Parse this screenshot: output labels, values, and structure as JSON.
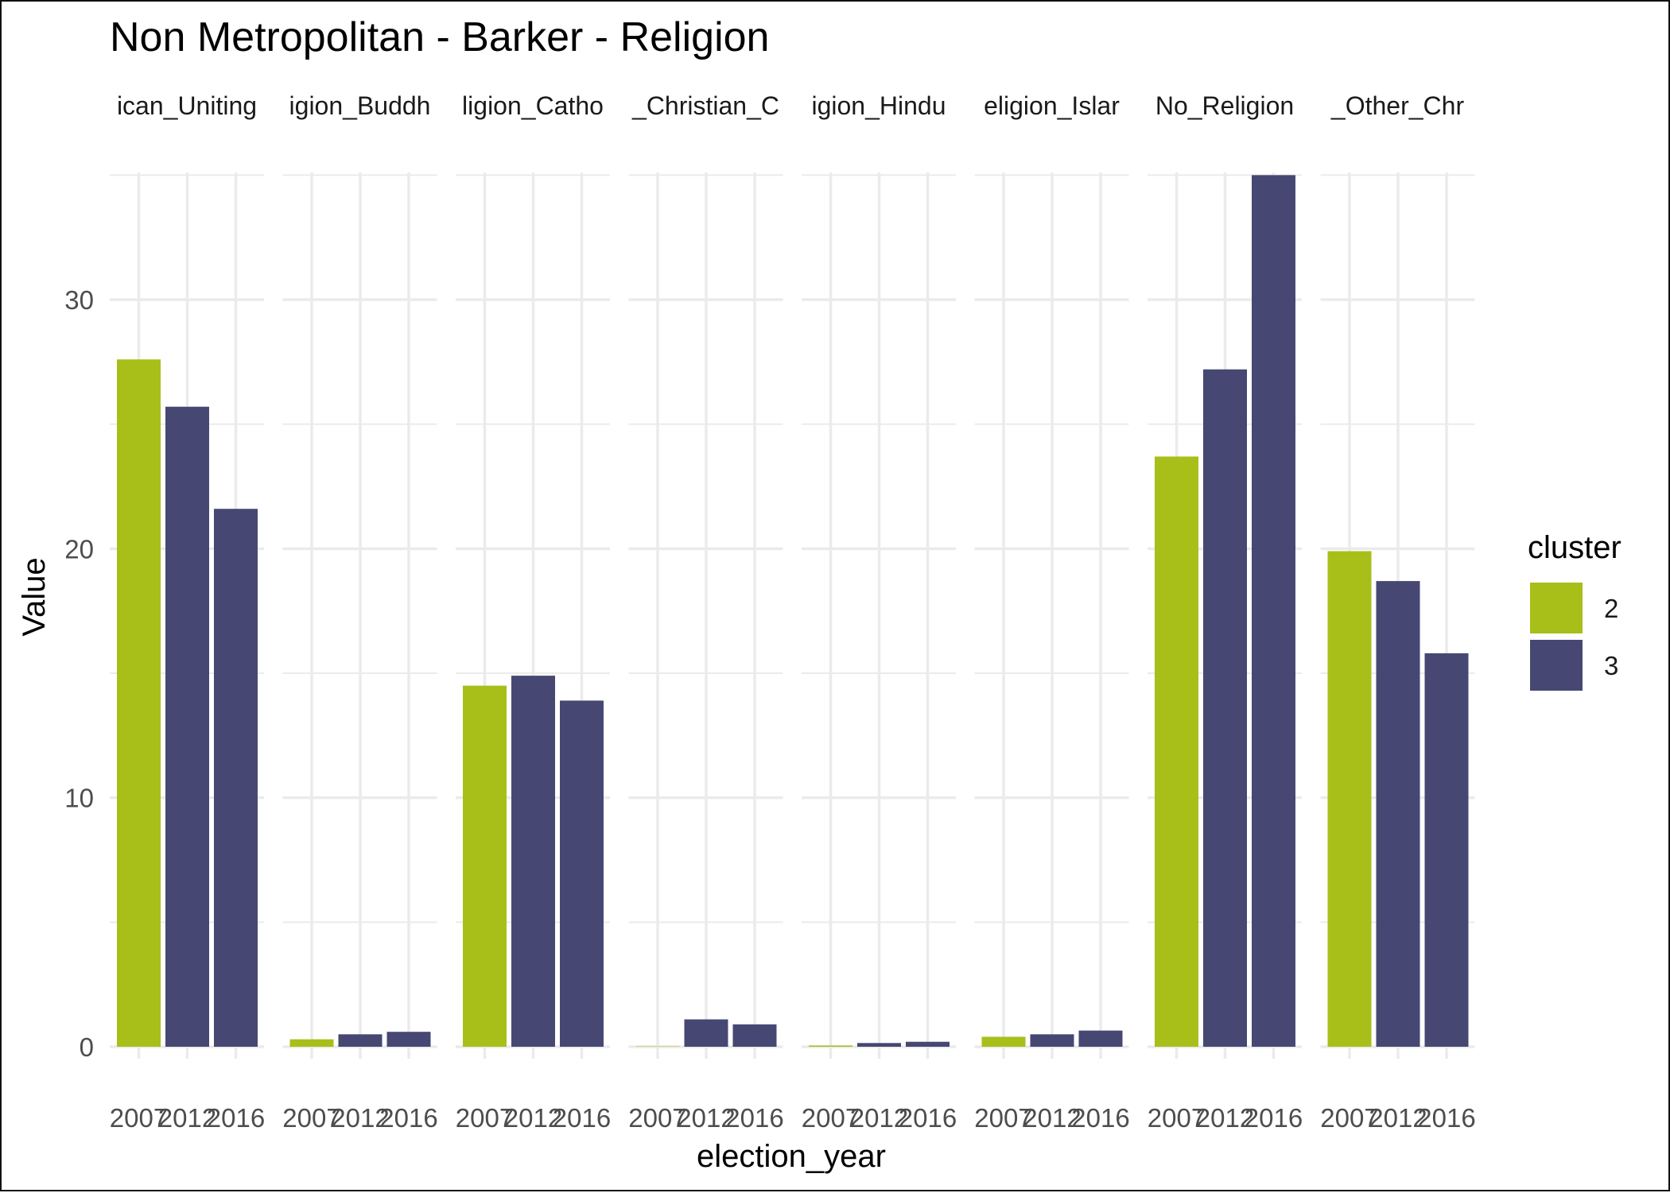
{
  "chart_data": {
    "type": "bar",
    "title": "Non Metropolitan - Barker - Religion",
    "xlabel": "election_year",
    "ylabel": "Value",
    "ylim": [
      0,
      36
    ],
    "y_ticks": [
      0,
      10,
      20,
      30
    ],
    "grid": true,
    "legend": {
      "title": "cluster",
      "placement": "right",
      "entries": [
        "2",
        "3"
      ]
    },
    "colors": {
      "2": "#A8BF1A",
      "3": "#464873",
      "grid": "#EBEBEB"
    },
    "facets": [
      {
        "label": "ican_Uniting",
        "bars": [
          {
            "year": "2007",
            "value": 27.6,
            "cluster": "2"
          },
          {
            "year": "2012",
            "value": 25.7,
            "cluster": "3"
          },
          {
            "year": "2016",
            "value": 21.6,
            "cluster": "3"
          }
        ]
      },
      {
        "label": "igion_Buddh",
        "bars": [
          {
            "year": "2007",
            "value": 0.3,
            "cluster": "2"
          },
          {
            "year": "2012",
            "value": 0.5,
            "cluster": "3"
          },
          {
            "year": "2016",
            "value": 0.6,
            "cluster": "3"
          }
        ]
      },
      {
        "label": "ligion_Catho",
        "bars": [
          {
            "year": "2007",
            "value": 14.5,
            "cluster": "2"
          },
          {
            "year": "2012",
            "value": 14.9,
            "cluster": "3"
          },
          {
            "year": "2016",
            "value": 13.9,
            "cluster": "3"
          }
        ]
      },
      {
        "label": "_Christian_C",
        "bars": [
          {
            "year": "2007",
            "value": 0.0,
            "cluster": "2"
          },
          {
            "year": "2012",
            "value": 1.1,
            "cluster": "3"
          },
          {
            "year": "2016",
            "value": 0.9,
            "cluster": "3"
          }
        ]
      },
      {
        "label": "igion_Hindu",
        "bars": [
          {
            "year": "2007",
            "value": 0.05,
            "cluster": "2"
          },
          {
            "year": "2012",
            "value": 0.15,
            "cluster": "3"
          },
          {
            "year": "2016",
            "value": 0.2,
            "cluster": "3"
          }
        ]
      },
      {
        "label": "eligion_Islar",
        "bars": [
          {
            "year": "2007",
            "value": 0.4,
            "cluster": "2"
          },
          {
            "year": "2012",
            "value": 0.5,
            "cluster": "3"
          },
          {
            "year": "2016",
            "value": 0.65,
            "cluster": "3"
          }
        ]
      },
      {
        "label": "No_Religion",
        "bars": [
          {
            "year": "2007",
            "value": 23.7,
            "cluster": "2"
          },
          {
            "year": "2012",
            "value": 27.2,
            "cluster": "3"
          },
          {
            "year": "2016",
            "value": 35.0,
            "cluster": "3"
          }
        ]
      },
      {
        "label": "_Other_Chr",
        "bars": [
          {
            "year": "2007",
            "value": 19.9,
            "cluster": "2"
          },
          {
            "year": "2012",
            "value": 18.7,
            "cluster": "3"
          },
          {
            "year": "2016",
            "value": 15.8,
            "cluster": "3"
          }
        ]
      }
    ]
  }
}
